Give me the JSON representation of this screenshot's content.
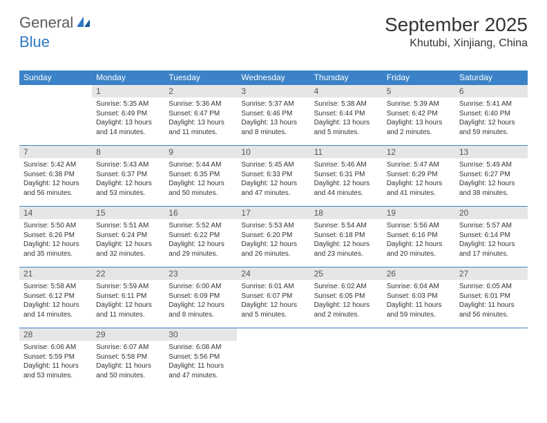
{
  "brand": {
    "part1": "General",
    "part2": "Blue",
    "part1_color": "#5a5a5a",
    "part2_color": "#2f78c4",
    "icon_color": "#2f78c4"
  },
  "title": "September 2025",
  "location": "Khutubi, Xinjiang, China",
  "colors": {
    "header_bg": "#3b82c7",
    "header_text": "#ffffff",
    "daynum_bg": "#e6e6e6",
    "daynum_text": "#555555",
    "body_text": "#333333",
    "row_border": "#3b82c7"
  },
  "weekdays": [
    "Sunday",
    "Monday",
    "Tuesday",
    "Wednesday",
    "Thursday",
    "Friday",
    "Saturday"
  ],
  "weeks": [
    [
      null,
      {
        "n": "1",
        "sr": "Sunrise: 5:35 AM",
        "ss": "Sunset: 6:49 PM",
        "dl": "Daylight: 13 hours and 14 minutes."
      },
      {
        "n": "2",
        "sr": "Sunrise: 5:36 AM",
        "ss": "Sunset: 6:47 PM",
        "dl": "Daylight: 13 hours and 11 minutes."
      },
      {
        "n": "3",
        "sr": "Sunrise: 5:37 AM",
        "ss": "Sunset: 6:46 PM",
        "dl": "Daylight: 13 hours and 8 minutes."
      },
      {
        "n": "4",
        "sr": "Sunrise: 5:38 AM",
        "ss": "Sunset: 6:44 PM",
        "dl": "Daylight: 13 hours and 5 minutes."
      },
      {
        "n": "5",
        "sr": "Sunrise: 5:39 AM",
        "ss": "Sunset: 6:42 PM",
        "dl": "Daylight: 13 hours and 2 minutes."
      },
      {
        "n": "6",
        "sr": "Sunrise: 5:41 AM",
        "ss": "Sunset: 6:40 PM",
        "dl": "Daylight: 12 hours and 59 minutes."
      }
    ],
    [
      {
        "n": "7",
        "sr": "Sunrise: 5:42 AM",
        "ss": "Sunset: 6:38 PM",
        "dl": "Daylight: 12 hours and 56 minutes."
      },
      {
        "n": "8",
        "sr": "Sunrise: 5:43 AM",
        "ss": "Sunset: 6:37 PM",
        "dl": "Daylight: 12 hours and 53 minutes."
      },
      {
        "n": "9",
        "sr": "Sunrise: 5:44 AM",
        "ss": "Sunset: 6:35 PM",
        "dl": "Daylight: 12 hours and 50 minutes."
      },
      {
        "n": "10",
        "sr": "Sunrise: 5:45 AM",
        "ss": "Sunset: 6:33 PM",
        "dl": "Daylight: 12 hours and 47 minutes."
      },
      {
        "n": "11",
        "sr": "Sunrise: 5:46 AM",
        "ss": "Sunset: 6:31 PM",
        "dl": "Daylight: 12 hours and 44 minutes."
      },
      {
        "n": "12",
        "sr": "Sunrise: 5:47 AM",
        "ss": "Sunset: 6:29 PM",
        "dl": "Daylight: 12 hours and 41 minutes."
      },
      {
        "n": "13",
        "sr": "Sunrise: 5:49 AM",
        "ss": "Sunset: 6:27 PM",
        "dl": "Daylight: 12 hours and 38 minutes."
      }
    ],
    [
      {
        "n": "14",
        "sr": "Sunrise: 5:50 AM",
        "ss": "Sunset: 6:26 PM",
        "dl": "Daylight: 12 hours and 35 minutes."
      },
      {
        "n": "15",
        "sr": "Sunrise: 5:51 AM",
        "ss": "Sunset: 6:24 PM",
        "dl": "Daylight: 12 hours and 32 minutes."
      },
      {
        "n": "16",
        "sr": "Sunrise: 5:52 AM",
        "ss": "Sunset: 6:22 PM",
        "dl": "Daylight: 12 hours and 29 minutes."
      },
      {
        "n": "17",
        "sr": "Sunrise: 5:53 AM",
        "ss": "Sunset: 6:20 PM",
        "dl": "Daylight: 12 hours and 26 minutes."
      },
      {
        "n": "18",
        "sr": "Sunrise: 5:54 AM",
        "ss": "Sunset: 6:18 PM",
        "dl": "Daylight: 12 hours and 23 minutes."
      },
      {
        "n": "19",
        "sr": "Sunrise: 5:56 AM",
        "ss": "Sunset: 6:16 PM",
        "dl": "Daylight: 12 hours and 20 minutes."
      },
      {
        "n": "20",
        "sr": "Sunrise: 5:57 AM",
        "ss": "Sunset: 6:14 PM",
        "dl": "Daylight: 12 hours and 17 minutes."
      }
    ],
    [
      {
        "n": "21",
        "sr": "Sunrise: 5:58 AM",
        "ss": "Sunset: 6:12 PM",
        "dl": "Daylight: 12 hours and 14 minutes."
      },
      {
        "n": "22",
        "sr": "Sunrise: 5:59 AM",
        "ss": "Sunset: 6:11 PM",
        "dl": "Daylight: 12 hours and 11 minutes."
      },
      {
        "n": "23",
        "sr": "Sunrise: 6:00 AM",
        "ss": "Sunset: 6:09 PM",
        "dl": "Daylight: 12 hours and 8 minutes."
      },
      {
        "n": "24",
        "sr": "Sunrise: 6:01 AM",
        "ss": "Sunset: 6:07 PM",
        "dl": "Daylight: 12 hours and 5 minutes."
      },
      {
        "n": "25",
        "sr": "Sunrise: 6:02 AM",
        "ss": "Sunset: 6:05 PM",
        "dl": "Daylight: 12 hours and 2 minutes."
      },
      {
        "n": "26",
        "sr": "Sunrise: 6:04 AM",
        "ss": "Sunset: 6:03 PM",
        "dl": "Daylight: 11 hours and 59 minutes."
      },
      {
        "n": "27",
        "sr": "Sunrise: 6:05 AM",
        "ss": "Sunset: 6:01 PM",
        "dl": "Daylight: 11 hours and 56 minutes."
      }
    ],
    [
      {
        "n": "28",
        "sr": "Sunrise: 6:06 AM",
        "ss": "Sunset: 5:59 PM",
        "dl": "Daylight: 11 hours and 53 minutes."
      },
      {
        "n": "29",
        "sr": "Sunrise: 6:07 AM",
        "ss": "Sunset: 5:58 PM",
        "dl": "Daylight: 11 hours and 50 minutes."
      },
      {
        "n": "30",
        "sr": "Sunrise: 6:08 AM",
        "ss": "Sunset: 5:56 PM",
        "dl": "Daylight: 11 hours and 47 minutes."
      },
      null,
      null,
      null,
      null
    ]
  ]
}
